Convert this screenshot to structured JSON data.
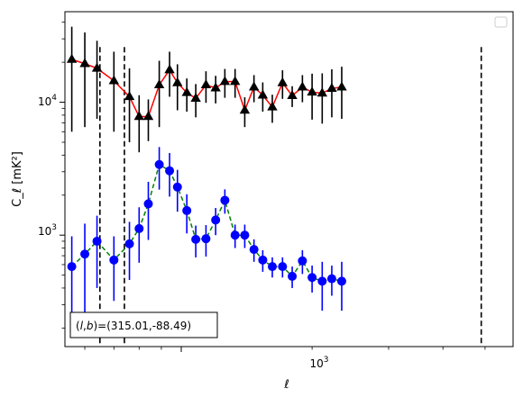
{
  "chart_data": {
    "type": "scatter",
    "title": "",
    "xlabel": "ℓ",
    "ylabel": "C_ℓ  [mK²]",
    "xscale": "log",
    "yscale": "log",
    "xlim": [
      540,
      5800
    ],
    "ylim": [
      145,
      48000
    ],
    "grid": false,
    "legend": {
      "placement": "top-right",
      "entries": []
    },
    "x_ticklabels": [
      {
        "value": 1000,
        "mantissa": "10",
        "exponent": "3"
      }
    ],
    "y_ticklabels": [
      {
        "value": 1000,
        "mantissa": "10",
        "exponent": "3"
      },
      {
        "value": 10000,
        "mantissa": "10",
        "exponent": "4"
      }
    ],
    "vlines": [
      {
        "x": 650,
        "style": "dashed",
        "color": "#000000"
      },
      {
        "x": 740,
        "style": "dashed",
        "color": "#000000"
      },
      {
        "x": 4900,
        "style": "dashed",
        "color": "#000000"
      }
    ],
    "annotation": {
      "text_prefix": "(",
      "l_symbol": "l",
      "sep": ",",
      "b_symbol": "b",
      "text_suffix": ")=(315.01,-88.49)"
    },
    "series": [
      {
        "marker": "triangle",
        "marker_color": "#000000",
        "line_color": "#ff0000",
        "line_style": "solid",
        "x": [
          560,
          600,
          640,
          700,
          760,
          800,
          840,
          890,
          940,
          980,
          1030,
          1080,
          1140,
          1200,
          1260,
          1330,
          1400,
          1470,
          1540,
          1620,
          1710,
          1800,
          1900,
          2000,
          2110,
          2220,
          2340
        ],
        "y": [
          21000,
          19500,
          18000,
          14500,
          11000,
          7800,
          7800,
          13500,
          17500,
          14000,
          11800,
          10700,
          13500,
          12800,
          14300,
          14300,
          8700,
          13000,
          11300,
          9200,
          14000,
          11200,
          13000,
          11900,
          11700,
          12700,
          13000
        ],
        "yerr_lo": [
          15000,
          13000,
          10500,
          8500,
          6000,
          3600,
          2700,
          7000,
          6500,
          5300,
          3300,
          3000,
          3600,
          3000,
          3500,
          3500,
          2200,
          3000,
          2800,
          2200,
          3400,
          2000,
          3000,
          4500,
          4800,
          5000,
          5500
        ],
        "yerr_hi": [
          16000,
          14000,
          11000,
          9500,
          7000,
          3500,
          2700,
          7000,
          6500,
          5300,
          3300,
          3000,
          3600,
          3000,
          3500,
          3500,
          2200,
          3000,
          2800,
          2200,
          3400,
          2000,
          3000,
          4500,
          4800,
          5000,
          5500
        ]
      },
      {
        "marker": "circle",
        "marker_color": "#0000ff",
        "line_color": "#008000",
        "line_style": "dashed",
        "x": [
          560,
          600,
          640,
          700,
          760,
          800,
          840,
          890,
          940,
          980,
          1030,
          1080,
          1140,
          1200,
          1260,
          1330,
          1400,
          1470,
          1540,
          1620,
          1710,
          1800,
          1900,
          2000,
          2110,
          2220,
          2340
        ],
        "y": [
          580,
          720,
          900,
          650,
          860,
          1120,
          1720,
          3400,
          3050,
          2300,
          1530,
          930,
          940,
          1300,
          1830,
          1000,
          1000,
          780,
          650,
          580,
          580,
          490,
          640,
          480,
          450,
          470,
          450
        ],
        "yerr_lo": [
          400,
          500,
          500,
          330,
          400,
          500,
          800,
          1200,
          1100,
          800,
          500,
          250,
          250,
          300,
          380,
          200,
          200,
          150,
          120,
          100,
          100,
          90,
          130,
          110,
          180,
          120,
          180
        ],
        "yerr_hi": [
          400,
          500,
          500,
          330,
          400,
          500,
          800,
          1200,
          1100,
          800,
          500,
          250,
          250,
          300,
          380,
          200,
          200,
          150,
          120,
          100,
          100,
          90,
          130,
          110,
          180,
          120,
          180
        ]
      }
    ]
  }
}
